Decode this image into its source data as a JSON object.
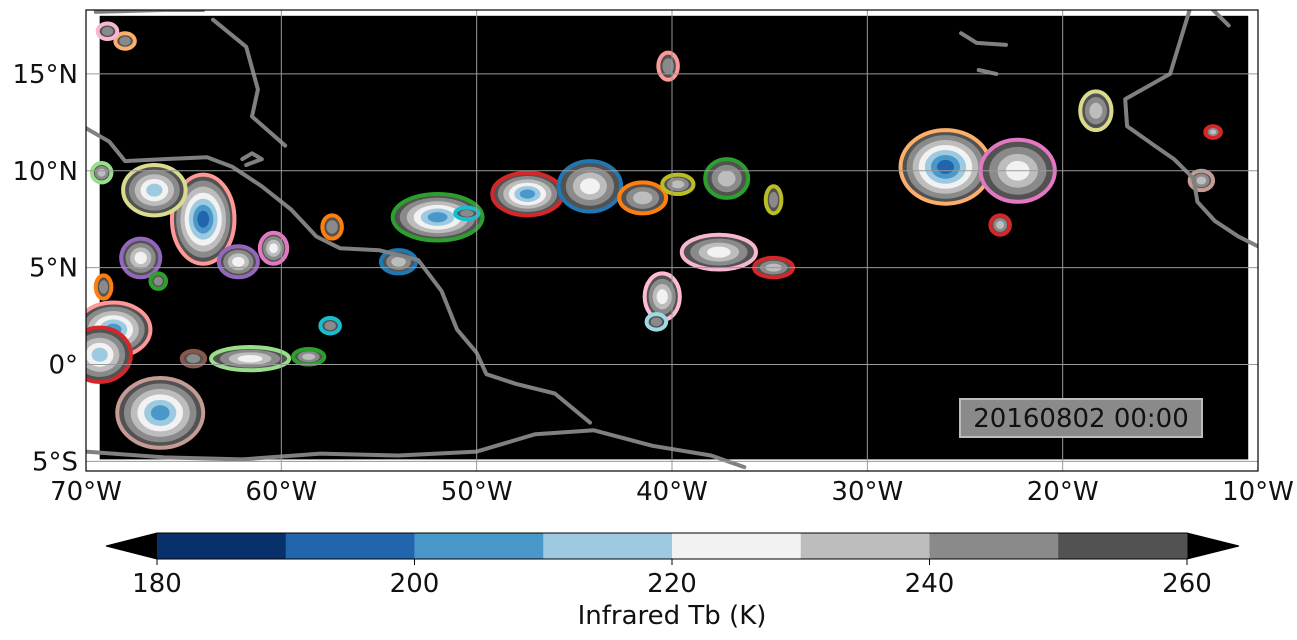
{
  "map": {
    "lon_min": -70,
    "lon_max": -10,
    "lat_min": -5.5,
    "lat_max": 18.3,
    "data_lat_min": -4.9,
    "data_lat_max": 18.0,
    "background": "#000000",
    "coast_color": "#808080",
    "grid_color": "#9a9a9a",
    "x_ticks": [
      {
        "value": -70,
        "label": "70°W"
      },
      {
        "value": -60,
        "label": "60°W"
      },
      {
        "value": -50,
        "label": "50°W"
      },
      {
        "value": -40,
        "label": "40°W"
      },
      {
        "value": -30,
        "label": "30°W"
      },
      {
        "value": -20,
        "label": "20°W"
      },
      {
        "value": -10,
        "label": "10°W"
      }
    ],
    "y_ticks": [
      {
        "value": 15,
        "label": "15°N"
      },
      {
        "value": 10,
        "label": "10°N"
      },
      {
        "value": 5,
        "label": "5°N"
      },
      {
        "value": 0,
        "label": "0°"
      },
      {
        "value": -5,
        "label": "5°S"
      }
    ],
    "timestamp": "20160802 00:00"
  },
  "colorbar": {
    "label": "Infrared Tb (K)",
    "min": 180,
    "max": 260,
    "step": 10,
    "under_color": "#000000",
    "over_color": "#000000",
    "colors": [
      "#08306b",
      "#2166ac",
      "#4a98c9",
      "#9ecae1",
      "#f2f2f2",
      "#bdbdbd",
      "#8a8a8a",
      "#525252"
    ],
    "ticks": [
      {
        "value": 180,
        "label": "180"
      },
      {
        "value": 200,
        "label": "200"
      },
      {
        "value": 220,
        "label": "220"
      },
      {
        "value": 240,
        "label": "240"
      },
      {
        "value": 260,
        "label": "260"
      }
    ]
  },
  "features": {
    "coastline_present": true,
    "cloud_systems": [
      {
        "lon": -26,
        "lat": 10.2,
        "rx": 2.3,
        "ry": 1.9,
        "outline": "#fdae6b",
        "core": 195
      },
      {
        "lon": -22.3,
        "lat": 10.0,
        "rx": 1.9,
        "ry": 1.6,
        "outline": "#e377c2",
        "core": 222
      },
      {
        "lon": -18.3,
        "lat": 13.1,
        "rx": 0.8,
        "ry": 1.0,
        "outline": "#dbdb8d",
        "core": 235
      },
      {
        "lon": -12.9,
        "lat": 9.5,
        "rx": 0.6,
        "ry": 0.5,
        "outline": "#c49c94",
        "core": 235
      },
      {
        "lon": -12.3,
        "lat": 12.0,
        "rx": 0.4,
        "ry": 0.3,
        "outline": "#d62728",
        "core": 240
      },
      {
        "lon": -23.2,
        "lat": 7.2,
        "rx": 0.5,
        "ry": 0.5,
        "outline": "#d62728",
        "core": 240
      },
      {
        "lon": -64,
        "lat": 7.5,
        "rx": 1.6,
        "ry": 2.3,
        "outline": "#ff9896",
        "core": 200
      },
      {
        "lon": -66.5,
        "lat": 9.0,
        "rx": 1.6,
        "ry": 1.3,
        "outline": "#dbdb8d",
        "core": 212
      },
      {
        "lon": -67.2,
        "lat": 5.5,
        "rx": 1.0,
        "ry": 1.0,
        "outline": "#9467bd",
        "core": 222
      },
      {
        "lon": -62.2,
        "lat": 5.3,
        "rx": 1.0,
        "ry": 0.8,
        "outline": "#9467bd",
        "core": 228
      },
      {
        "lon": -60.4,
        "lat": 6.0,
        "rx": 0.7,
        "ry": 0.8,
        "outline": "#e377c2",
        "core": 228
      },
      {
        "lon": -69.2,
        "lat": 9.9,
        "rx": 0.5,
        "ry": 0.5,
        "outline": "#98df8a",
        "core": 240
      },
      {
        "lon": -52,
        "lat": 7.6,
        "rx": 2.3,
        "ry": 1.2,
        "outline": "#2ca02c",
        "core": 210
      },
      {
        "lon": -47.4,
        "lat": 8.8,
        "rx": 1.8,
        "ry": 1.1,
        "outline": "#d62728",
        "core": 205
      },
      {
        "lon": -44.2,
        "lat": 9.2,
        "rx": 1.6,
        "ry": 1.3,
        "outline": "#1f77b4",
        "core": 222
      },
      {
        "lon": -41.5,
        "lat": 8.6,
        "rx": 1.2,
        "ry": 0.8,
        "outline": "#ff7f0e",
        "core": 235
      },
      {
        "lon": -39.7,
        "lat": 9.3,
        "rx": 0.8,
        "ry": 0.5,
        "outline": "#bcbd22",
        "core": 240
      },
      {
        "lon": -37.2,
        "lat": 9.6,
        "rx": 1.1,
        "ry": 1.0,
        "outline": "#2ca02c",
        "core": 240
      },
      {
        "lon": -37.6,
        "lat": 5.8,
        "rx": 1.9,
        "ry": 0.9,
        "outline": "#f7b6d2",
        "core": 228
      },
      {
        "lon": -34.8,
        "lat": 5.0,
        "rx": 1.0,
        "ry": 0.5,
        "outline": "#d62728",
        "core": 240
      },
      {
        "lon": -34.8,
        "lat": 8.5,
        "rx": 0.4,
        "ry": 0.7,
        "outline": "#bcbd22",
        "core": 245
      },
      {
        "lon": -40.5,
        "lat": 3.5,
        "rx": 0.9,
        "ry": 1.2,
        "outline": "#ffbbd5",
        "core": 222
      },
      {
        "lon": -54,
        "lat": 5.3,
        "rx": 0.9,
        "ry": 0.6,
        "outline": "#1f77b4",
        "core": 232
      },
      {
        "lon": -57.4,
        "lat": 7.1,
        "rx": 0.5,
        "ry": 0.6,
        "outline": "#ff7f0e",
        "core": 242
      },
      {
        "lon": -68.6,
        "lat": 1.8,
        "rx": 1.9,
        "ry": 1.4,
        "outline": "#ff9896",
        "core": 210
      },
      {
        "lon": -69.3,
        "lat": 0.5,
        "rx": 1.6,
        "ry": 1.4,
        "outline": "#d62728",
        "core": 215
      },
      {
        "lon": -66.2,
        "lat": -2.5,
        "rx": 2.2,
        "ry": 1.8,
        "outline": "#c49c94",
        "core": 210
      },
      {
        "lon": -61.6,
        "lat": 0.3,
        "rx": 2.0,
        "ry": 0.6,
        "outline": "#98df8a",
        "core": 228
      },
      {
        "lon": -58.6,
        "lat": 0.4,
        "rx": 0.8,
        "ry": 0.4,
        "outline": "#2ca02c",
        "core": 240
      },
      {
        "lon": -66.3,
        "lat": 4.3,
        "rx": 0.4,
        "ry": 0.4,
        "outline": "#2ca02c",
        "core": 245
      },
      {
        "lon": -69.1,
        "lat": 4.0,
        "rx": 0.4,
        "ry": 0.6,
        "outline": "#ff7f0e",
        "core": 245
      },
      {
        "lon": -64.5,
        "lat": 0.3,
        "rx": 0.6,
        "ry": 0.4,
        "outline": "#8c564b",
        "core": 245
      },
      {
        "lon": -57.5,
        "lat": 2.0,
        "rx": 0.5,
        "ry": 0.4,
        "outline": "#17becf",
        "core": 245
      },
      {
        "lon": -50.5,
        "lat": 7.8,
        "rx": 0.6,
        "ry": 0.3,
        "outline": "#17becf",
        "core": 245
      },
      {
        "lon": -40.8,
        "lat": 2.2,
        "rx": 0.5,
        "ry": 0.4,
        "outline": "#9edae5",
        "core": 245
      },
      {
        "lon": -40.2,
        "lat": 15.4,
        "rx": 0.5,
        "ry": 0.7,
        "outline": "#ff9896",
        "core": 245
      },
      {
        "lon": -68.0,
        "lat": 16.7,
        "rx": 0.5,
        "ry": 0.4,
        "outline": "#fdae6b",
        "core": 245
      },
      {
        "lon": -68.9,
        "lat": 17.2,
        "rx": 0.5,
        "ry": 0.4,
        "outline": "#f7b6d2",
        "core": 245
      }
    ]
  }
}
